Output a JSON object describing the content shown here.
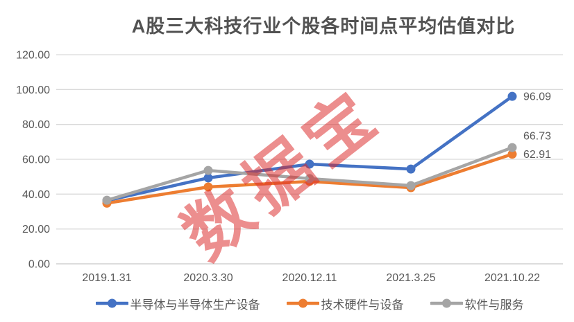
{
  "chart_data": {
    "type": "line",
    "title": "A股三大科技行业个股各时间点平均估值对比",
    "categories": [
      "2019.1.31",
      "2020.3.30",
      "2020.12.11",
      "2021.3.25",
      "2021.10.22"
    ],
    "series": [
      {
        "key": "semiconductor",
        "name": "半导体与半导体生产设备",
        "color": "#4472C4",
        "values": [
          36.3,
          49.3,
          57.2,
          54.4,
          96.09
        ],
        "end_label": "96.09",
        "end_label_dy": 0
      },
      {
        "key": "hardware",
        "name": "技术硬件与设备",
        "color": "#ED7D31",
        "values": [
          34.8,
          44.1,
          47.3,
          43.7,
          62.91
        ],
        "end_label": "62.91",
        "end_label_dy": 0
      },
      {
        "key": "software",
        "name": "软件与服务",
        "color": "#A5A5A5",
        "values": [
          36.5,
          53.6,
          48.9,
          44.9,
          66.73
        ],
        "end_label": "66.73",
        "end_label_dy": -17
      }
    ],
    "y_tick_labels": [
      "0.00",
      "20.00",
      "40.00",
      "60.00",
      "80.00",
      "100.00",
      "120.00"
    ],
    "ylim": [
      0,
      120
    ],
    "grid": true,
    "legend_position": "bottom"
  },
  "watermark": {
    "text": "数据宝",
    "color": "#DC2828"
  },
  "colors": {
    "text": "#595959",
    "title": "#525252",
    "grid": "#D9D9D9",
    "zero_line": "#C8C8C8"
  }
}
